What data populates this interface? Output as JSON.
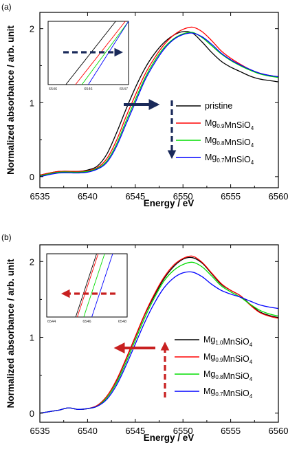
{
  "chart_data": [
    {
      "type": "line",
      "panel_label": "(a)",
      "xlabel": "Energy / eV",
      "ylabel": "Normalized absorbance / arb. unit",
      "xlim": [
        6535,
        6560
      ],
      "ylim": [
        -0.15,
        2.22
      ],
      "xticks": [
        6535,
        6540,
        6545,
        6550,
        6555,
        6560
      ],
      "yticks": [
        0,
        1,
        2
      ],
      "grid": false,
      "legend_position": "center-right",
      "legend": [
        {
          "main": "pristine",
          "parts": [
            [
              "pristine",
              ""
            ]
          ],
          "color": "#000000"
        },
        {
          "main": "Mg0.9MnSiO4",
          "parts": [
            [
              "Mg",
              ""
            ],
            [
              "0.9",
              "sub"
            ],
            [
              "MnSiO",
              ""
            ],
            [
              "4",
              "sub"
            ]
          ],
          "color": "#ff0000"
        },
        {
          "main": "Mg0.8MnSiO4",
          "parts": [
            [
              "Mg",
              ""
            ],
            [
              "0.8",
              "sub"
            ],
            [
              "MnSiO",
              ""
            ],
            [
              "4",
              "sub"
            ]
          ],
          "color": "#00dd00"
        },
        {
          "main": "Mg0.7MnSiO4",
          "parts": [
            [
              "Mg",
              ""
            ],
            [
              "0.7",
              "sub"
            ],
            [
              "MnSiO",
              ""
            ],
            [
              "4",
              "sub"
            ]
          ],
          "color": "#0000ff"
        }
      ],
      "series": [
        {
          "color": "#000000",
          "x": [
            6535,
            6537,
            6539,
            6540,
            6541,
            6542,
            6543,
            6544,
            6545,
            6546,
            6547,
            6548,
            6549,
            6550,
            6551,
            6552,
            6553,
            6554,
            6555,
            6556,
            6557,
            6558,
            6559,
            6560
          ],
          "y": [
            0.02,
            0.07,
            0.07,
            0.09,
            0.14,
            0.3,
            0.58,
            0.9,
            1.2,
            1.46,
            1.66,
            1.81,
            1.91,
            1.96,
            1.94,
            1.82,
            1.68,
            1.56,
            1.48,
            1.42,
            1.36,
            1.32,
            1.3,
            1.28
          ]
        },
        {
          "color": "#ff0000",
          "x": [
            6535,
            6537,
            6539,
            6540,
            6541,
            6542,
            6543,
            6544,
            6545,
            6546,
            6547,
            6548,
            6549,
            6550,
            6551,
            6552,
            6553,
            6554,
            6555,
            6556,
            6557,
            6558,
            6559,
            6560
          ],
          "y": [
            0.02,
            0.07,
            0.07,
            0.08,
            0.12,
            0.24,
            0.48,
            0.8,
            1.1,
            1.38,
            1.6,
            1.78,
            1.91,
            1.99,
            2.02,
            1.96,
            1.84,
            1.7,
            1.6,
            1.52,
            1.45,
            1.4,
            1.37,
            1.35
          ]
        },
        {
          "color": "#00dd00",
          "x": [
            6535,
            6537,
            6539,
            6540,
            6541,
            6542,
            6543,
            6544,
            6545,
            6546,
            6547,
            6548,
            6549,
            6550,
            6551,
            6552,
            6553,
            6554,
            6555,
            6556,
            6557,
            6558,
            6559,
            6560
          ],
          "y": [
            0.01,
            0.06,
            0.06,
            0.07,
            0.11,
            0.21,
            0.43,
            0.74,
            1.04,
            1.33,
            1.56,
            1.74,
            1.86,
            1.93,
            1.95,
            1.88,
            1.77,
            1.66,
            1.57,
            1.5,
            1.44,
            1.39,
            1.36,
            1.34
          ]
        },
        {
          "color": "#0000ff",
          "x": [
            6535,
            6537,
            6539,
            6540,
            6541,
            6542,
            6543,
            6544,
            6545,
            6546,
            6547,
            6548,
            6549,
            6550,
            6551,
            6552,
            6553,
            6554,
            6555,
            6556,
            6557,
            6558,
            6559,
            6560
          ],
          "y": [
            0.0,
            0.05,
            0.05,
            0.06,
            0.1,
            0.19,
            0.4,
            0.7,
            1.0,
            1.3,
            1.53,
            1.72,
            1.85,
            1.92,
            1.94,
            1.89,
            1.79,
            1.67,
            1.58,
            1.51,
            1.45,
            1.4,
            1.37,
            1.35
          ]
        }
      ],
      "inset": {
        "xticks": [
          "6546",
          "6546",
          "6547"
        ],
        "lines": [
          {
            "color": "#000000",
            "from": [
              0.22,
              0.0
            ],
            "to": [
              1.0,
              0.0
            ]
          },
          {
            "color": "#ff0000",
            "from": [
              0.34,
              0.0
            ],
            "to": [
              1.0,
              0.0
            ]
          },
          {
            "color": "#00dd00",
            "from": [
              0.42,
              0.0
            ],
            "to": [
              1.0,
              0.0
            ]
          },
          {
            "color": "#0000ff",
            "from": [
              0.5,
              0.0
            ],
            "to": [
              1.0,
              0.0
            ]
          }
        ]
      },
      "arrows_color": "#1a2a5a"
    },
    {
      "type": "line",
      "panel_label": "(b)",
      "xlabel": "Energy / eV",
      "ylabel": "Normalized absorbance / arb. unit",
      "xlim": [
        6535,
        6560
      ],
      "ylim": [
        -0.12,
        2.22
      ],
      "xticks": [
        6535,
        6540,
        6545,
        6550,
        6555,
        6560
      ],
      "yticks": [
        0,
        1,
        2
      ],
      "grid": false,
      "legend_position": "center-right",
      "legend": [
        {
          "main": "Mg1.0MnSiO4",
          "parts": [
            [
              "Mg",
              ""
            ],
            [
              "1.0",
              "sub"
            ],
            [
              "MnSiO",
              ""
            ],
            [
              "4",
              "sub"
            ]
          ],
          "color": "#000000"
        },
        {
          "main": "Mg0.9MnSiO4",
          "parts": [
            [
              "Mg",
              ""
            ],
            [
              "0.9",
              "sub"
            ],
            [
              "MnSiO",
              ""
            ],
            [
              "4",
              "sub"
            ]
          ],
          "color": "#ff0000"
        },
        {
          "main": "Mg0.8MnSiO4",
          "parts": [
            [
              "Mg",
              ""
            ],
            [
              "0.8",
              "sub"
            ],
            [
              "MnSiO",
              ""
            ],
            [
              "4",
              "sub"
            ]
          ],
          "color": "#00dd00"
        },
        {
          "main": "Mg0.7MnSiO4",
          "parts": [
            [
              "Mg",
              ""
            ],
            [
              "0.7",
              "sub"
            ],
            [
              "MnSiO",
              ""
            ],
            [
              "4",
              "sub"
            ]
          ],
          "color": "#0000ff"
        }
      ],
      "series": [
        {
          "color": "#000000",
          "x": [
            6535,
            6536,
            6537,
            6538,
            6539,
            6540,
            6541,
            6542,
            6543,
            6544,
            6545,
            6546,
            6547,
            6548,
            6549,
            6550,
            6551,
            6552,
            6553,
            6554,
            6555,
            6556,
            6557,
            6558,
            6559,
            6560
          ],
          "y": [
            0.0,
            0.02,
            0.04,
            0.07,
            0.05,
            0.06,
            0.1,
            0.22,
            0.42,
            0.7,
            1.0,
            1.3,
            1.55,
            1.77,
            1.93,
            2.03,
            2.05,
            1.98,
            1.84,
            1.7,
            1.62,
            1.55,
            1.44,
            1.34,
            1.29,
            1.26
          ]
        },
        {
          "color": "#ff0000",
          "x": [
            6535,
            6536,
            6537,
            6538,
            6539,
            6540,
            6541,
            6542,
            6543,
            6544,
            6545,
            6546,
            6547,
            6548,
            6549,
            6550,
            6551,
            6552,
            6553,
            6554,
            6555,
            6556,
            6557,
            6558,
            6559,
            6560
          ],
          "y": [
            0.0,
            0.02,
            0.04,
            0.07,
            0.05,
            0.06,
            0.1,
            0.22,
            0.43,
            0.71,
            1.01,
            1.31,
            1.57,
            1.79,
            1.95,
            2.04,
            2.07,
            1.99,
            1.85,
            1.71,
            1.62,
            1.55,
            1.43,
            1.33,
            1.28,
            1.25
          ]
        },
        {
          "color": "#00dd00",
          "x": [
            6535,
            6536,
            6537,
            6538,
            6539,
            6540,
            6541,
            6542,
            6543,
            6544,
            6545,
            6546,
            6547,
            6548,
            6549,
            6550,
            6551,
            6552,
            6553,
            6554,
            6555,
            6556,
            6557,
            6558,
            6559,
            6560
          ],
          "y": [
            0.0,
            0.02,
            0.04,
            0.07,
            0.05,
            0.06,
            0.09,
            0.2,
            0.39,
            0.66,
            0.96,
            1.26,
            1.52,
            1.74,
            1.88,
            1.96,
            1.99,
            1.93,
            1.81,
            1.68,
            1.6,
            1.53,
            1.44,
            1.36,
            1.31,
            1.28
          ]
        },
        {
          "color": "#0000ff",
          "x": [
            6535,
            6536,
            6537,
            6538,
            6539,
            6540,
            6541,
            6542,
            6543,
            6544,
            6545,
            6546,
            6547,
            6548,
            6549,
            6550,
            6551,
            6552,
            6553,
            6554,
            6555,
            6556,
            6557,
            6558,
            6559,
            6560
          ],
          "y": [
            0.0,
            0.02,
            0.04,
            0.07,
            0.05,
            0.06,
            0.09,
            0.18,
            0.36,
            0.62,
            0.91,
            1.2,
            1.45,
            1.65,
            1.78,
            1.85,
            1.86,
            1.8,
            1.7,
            1.62,
            1.57,
            1.53,
            1.48,
            1.43,
            1.4,
            1.38
          ]
        }
      ],
      "inset": {
        "xticks": [
          "6544",
          "6546",
          "6548"
        ],
        "lines": [
          {
            "color": "#000000",
            "from": [
              0.36,
              0.0
            ],
            "to": [
              0.62,
              1.0
            ]
          },
          {
            "color": "#ff0000",
            "from": [
              0.38,
              0.0
            ],
            "to": [
              0.64,
              1.0
            ]
          },
          {
            "color": "#00dd00",
            "from": [
              0.46,
              0.0
            ],
            "to": [
              0.72,
              1.0
            ]
          },
          {
            "color": "#0000ff",
            "from": [
              0.56,
              0.0
            ],
            "to": [
              0.82,
              1.0
            ]
          }
        ]
      },
      "arrows_color": "#c82020"
    }
  ]
}
